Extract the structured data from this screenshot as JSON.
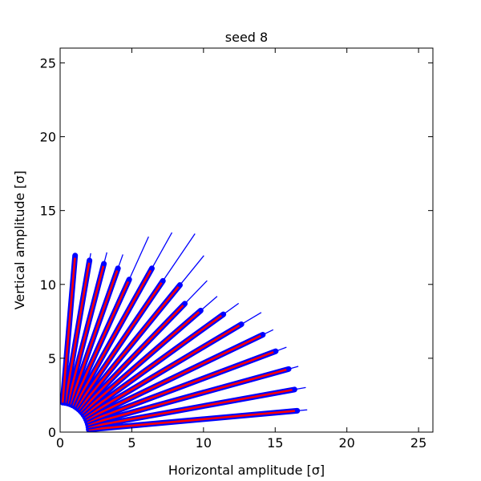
{
  "chart_data": {
    "type": "scatter",
    "title": "seed 8",
    "xlabel": "Horizontal amplitude [σ]",
    "ylabel": "Vertical amplitude [σ]",
    "xlim": [
      0,
      26
    ],
    "ylim": [
      0,
      26
    ],
    "xticks": [
      "0",
      "5",
      "10",
      "15",
      "20",
      "25"
    ],
    "yticks": [
      "0",
      "5",
      "10",
      "15",
      "20",
      "25"
    ],
    "grid": false,
    "colors": {
      "outer": "#0000ff",
      "inner": "#ff0000",
      "axes": "#000000"
    },
    "ray_angles_deg": [
      5,
      10,
      15,
      20,
      25,
      30,
      35,
      40,
      45,
      50,
      55,
      60,
      65,
      70,
      75,
      80,
      85
    ],
    "start_radius": 2,
    "ray_end_amplitudes": [
      16.6,
      16.6,
      16.5,
      16.0,
      15.6,
      14.6,
      13.9,
      12.8,
      12.3,
      13.0,
      12.5,
      12.8,
      11.4,
      11.8,
      11.8,
      11.8,
      12.0
    ],
    "ray_tail_amplitudes": [
      17.3,
      17.4,
      17.2,
      16.8,
      16.4,
      16.2,
      15.2,
      14.3,
      14.5,
      15.6,
      16.4,
      15.6,
      14.6,
      12.8,
      12.6,
      12.3,
      12.0
    ]
  }
}
